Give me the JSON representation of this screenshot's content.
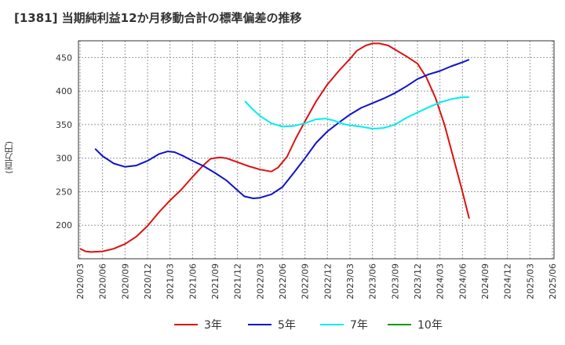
{
  "chart_data": {
    "type": "line",
    "title": "[1381]  当期純利益12か月移動合計の標準偏差の推移",
    "ylabel": "(百万円)",
    "xlabel": "",
    "ylim": [
      150,
      475
    ],
    "yticks": [
      200,
      250,
      300,
      350,
      400,
      450
    ],
    "grid": true,
    "legend_position": "bottom",
    "x_categories": [
      "2020/03",
      "2020/06",
      "2020/09",
      "2020/12",
      "2021/03",
      "2021/06",
      "2021/09",
      "2021/12",
      "2022/03",
      "2022/06",
      "2022/09",
      "2022/12",
      "2023/03",
      "2023/06",
      "2023/09",
      "2023/12",
      "2024/03",
      "2024/06",
      "2024/09",
      "2024/12",
      "2025/03",
      "2025/06"
    ],
    "series": [
      {
        "name": "3年",
        "color": "#dd1111",
        "points": [
          [
            0,
            165
          ],
          [
            0.25,
            161
          ],
          [
            0.5,
            160
          ],
          [
            1,
            161
          ],
          [
            1.5,
            165
          ],
          [
            2,
            172
          ],
          [
            2.5,
            183
          ],
          [
            3,
            199
          ],
          [
            3.5,
            219
          ],
          [
            4,
            237
          ],
          [
            4.5,
            253
          ],
          [
            5,
            272
          ],
          [
            5.5,
            290
          ],
          [
            5.8,
            299
          ],
          [
            6.2,
            301
          ],
          [
            6.5,
            300
          ],
          [
            7,
            294
          ],
          [
            7.5,
            288
          ],
          [
            8,
            283
          ],
          [
            8.5,
            280
          ],
          [
            8.8,
            286
          ],
          [
            9.2,
            302
          ],
          [
            9.6,
            330
          ],
          [
            10,
            355
          ],
          [
            10.5,
            385
          ],
          [
            11,
            410
          ],
          [
            11.5,
            430
          ],
          [
            12,
            448
          ],
          [
            12.3,
            460
          ],
          [
            12.7,
            468
          ],
          [
            13,
            471
          ],
          [
            13.3,
            471
          ],
          [
            13.7,
            468
          ],
          [
            14,
            462
          ],
          [
            14.5,
            452
          ],
          [
            15,
            441
          ],
          [
            15.4,
            420
          ],
          [
            15.8,
            390
          ],
          [
            16.2,
            350
          ],
          [
            16.6,
            300
          ],
          [
            17,
            250
          ],
          [
            17.3,
            210
          ]
        ]
      },
      {
        "name": "5年",
        "color": "#1111cc",
        "points": [
          [
            0.67,
            314
          ],
          [
            1,
            303
          ],
          [
            1.5,
            292
          ],
          [
            2,
            287
          ],
          [
            2.5,
            289
          ],
          [
            3,
            296
          ],
          [
            3.5,
            306
          ],
          [
            3.9,
            310
          ],
          [
            4.2,
            309
          ],
          [
            4.6,
            303
          ],
          [
            5,
            296
          ],
          [
            5.5,
            288
          ],
          [
            6,
            278
          ],
          [
            6.5,
            267
          ],
          [
            7,
            252
          ],
          [
            7.3,
            243
          ],
          [
            7.7,
            240
          ],
          [
            8,
            241
          ],
          [
            8.5,
            246
          ],
          [
            9,
            257
          ],
          [
            9.5,
            278
          ],
          [
            10,
            300
          ],
          [
            10.5,
            323
          ],
          [
            11,
            340
          ],
          [
            11.5,
            353
          ],
          [
            12,
            365
          ],
          [
            12.5,
            375
          ],
          [
            13,
            382
          ],
          [
            13.5,
            389
          ],
          [
            14,
            397
          ],
          [
            14.5,
            407
          ],
          [
            15,
            418
          ],
          [
            15.5,
            425
          ],
          [
            16,
            430
          ],
          [
            16.5,
            437
          ],
          [
            17,
            443
          ],
          [
            17.3,
            447
          ]
        ]
      },
      {
        "name": "7年",
        "color": "#00eeee",
        "points": [
          [
            7.33,
            385
          ],
          [
            7.7,
            372
          ],
          [
            8,
            363
          ],
          [
            8.5,
            352
          ],
          [
            9,
            347
          ],
          [
            9.5,
            348
          ],
          [
            10,
            352
          ],
          [
            10.5,
            358
          ],
          [
            10.9,
            359
          ],
          [
            11.3,
            356
          ],
          [
            11.7,
            351
          ],
          [
            12,
            349
          ],
          [
            12.5,
            347
          ],
          [
            13,
            344
          ],
          [
            13.5,
            345
          ],
          [
            14,
            350
          ],
          [
            14.5,
            360
          ],
          [
            15,
            368
          ],
          [
            15.5,
            376
          ],
          [
            16,
            383
          ],
          [
            16.5,
            388
          ],
          [
            17,
            391
          ],
          [
            17.3,
            391
          ]
        ]
      },
      {
        "name": "10年",
        "color": "#119911",
        "points": []
      }
    ]
  }
}
